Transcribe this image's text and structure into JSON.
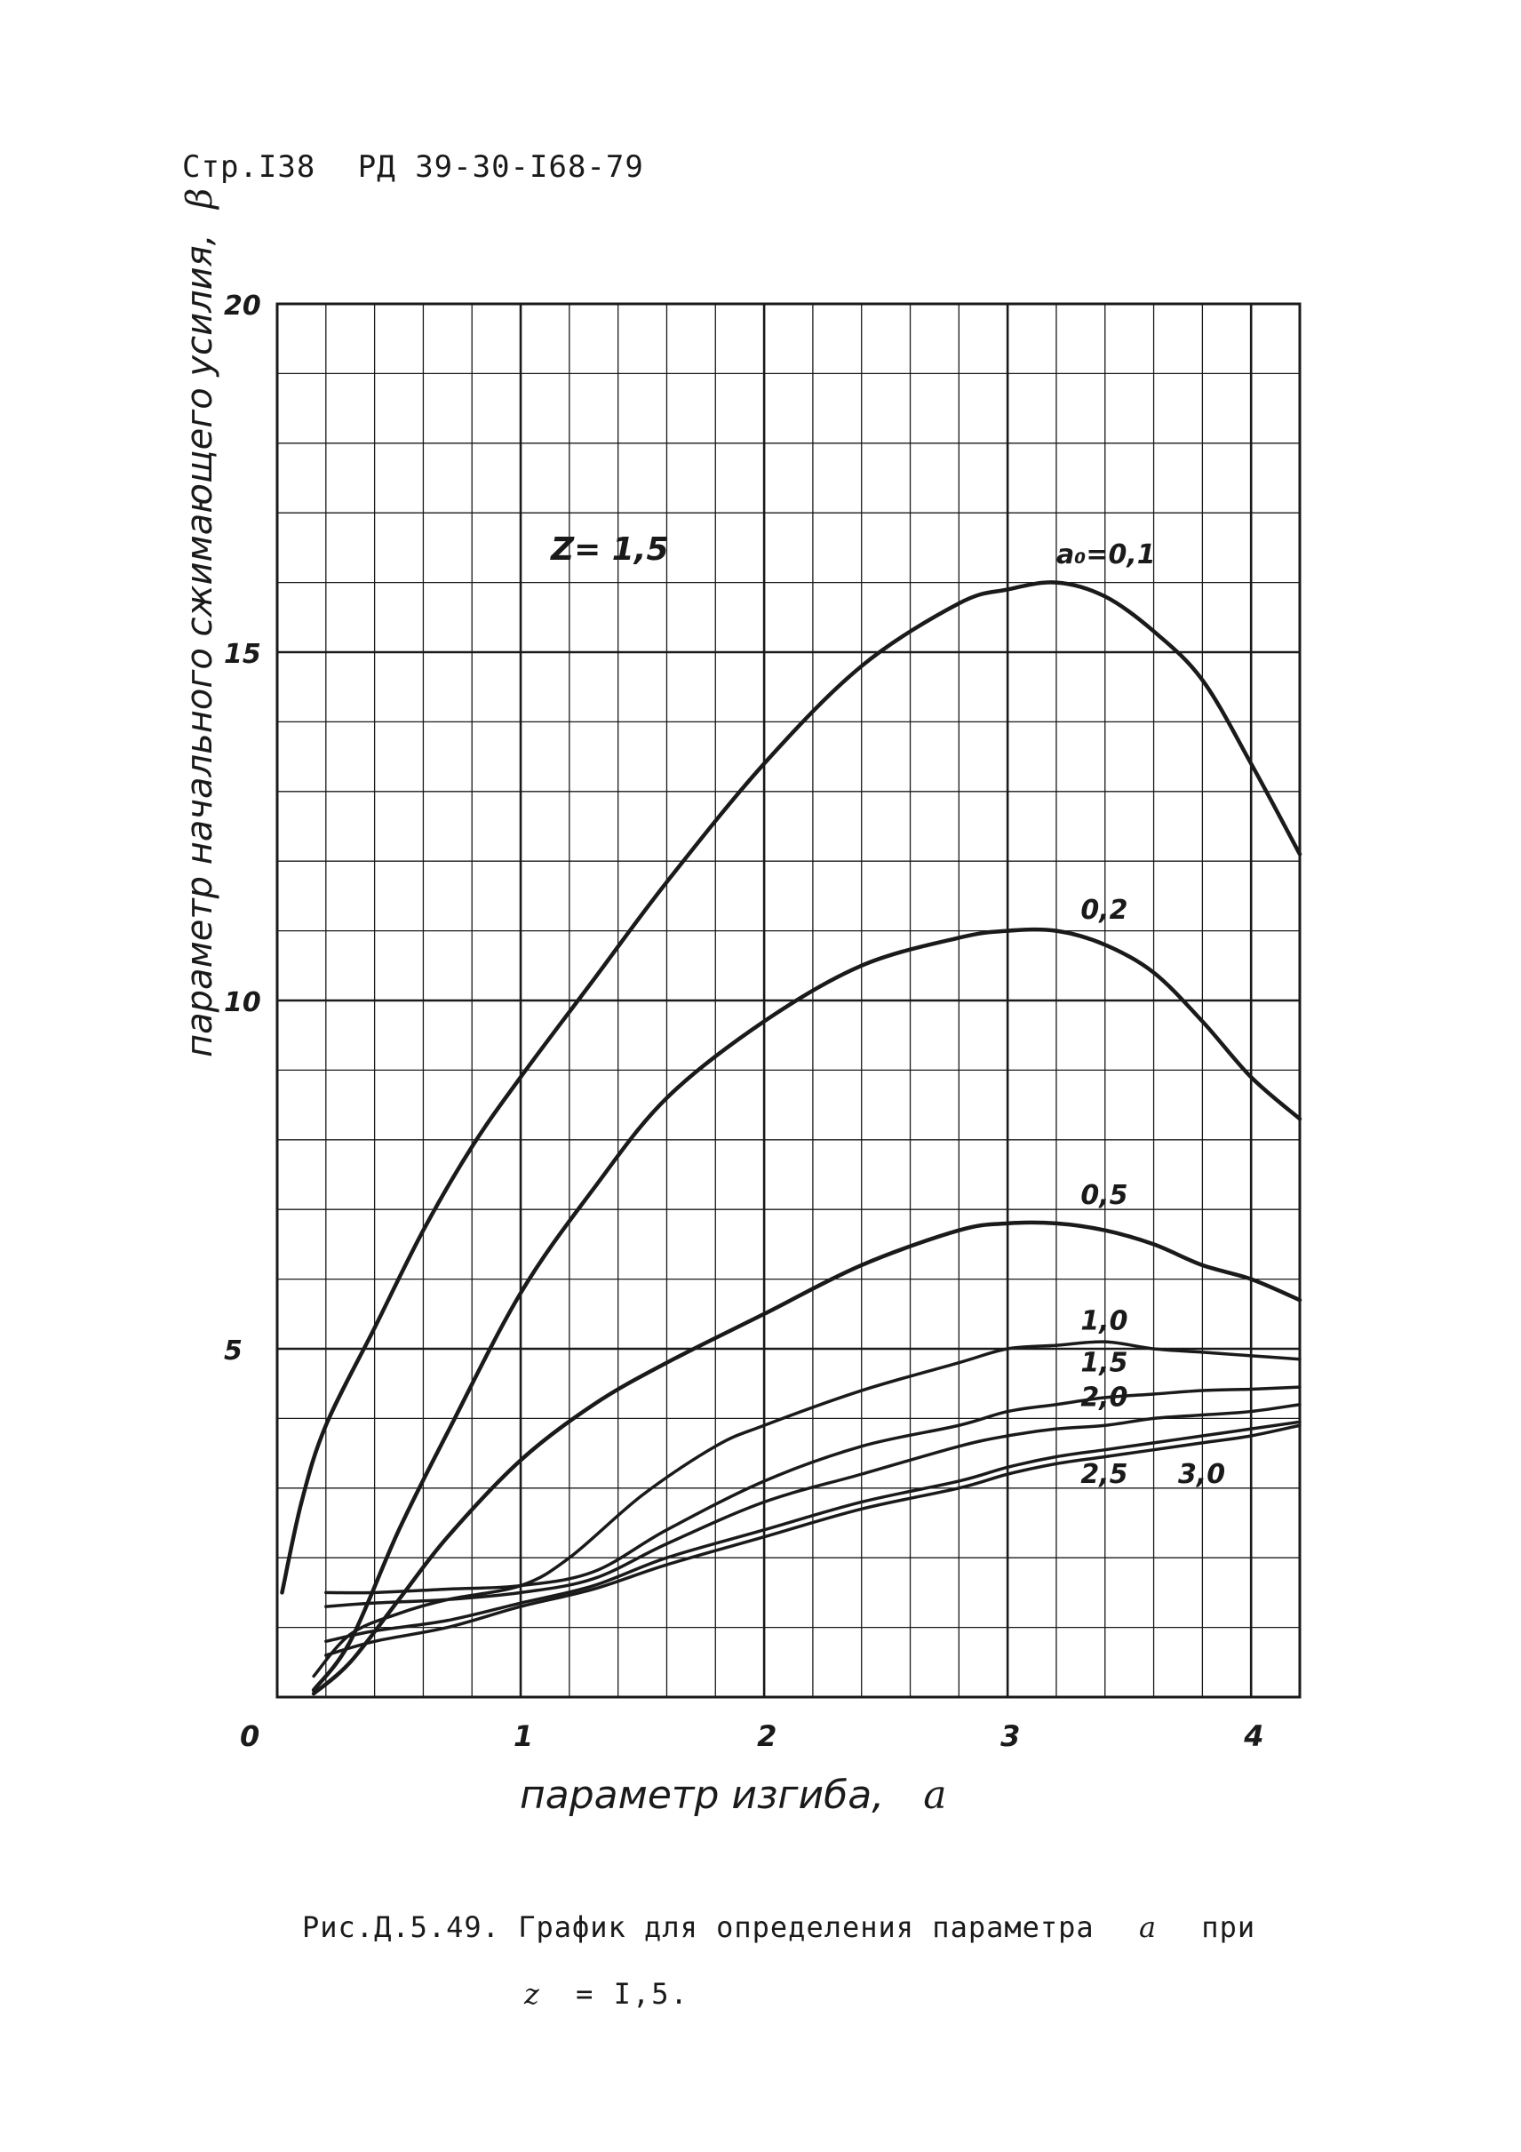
{
  "header": {
    "page": "Стр.I38",
    "doc": "РД 39-30-I68-79"
  },
  "caption": {
    "line1_prefix": "Рис.Д.5.49. График для определения параметра",
    "line1_symbol": "a",
    "line1_suffix": "при",
    "line2_symbol": "z",
    "line2_rest": "= I,5."
  },
  "colors": {
    "ink": "#1a1a1a",
    "grid": "#1a1a1a",
    "paper": "#ffffff"
  },
  "chart_data": {
    "type": "line",
    "xlabel": "параметр изгиба,",
    "xlabel_symbol": "a",
    "ylabel": "параметр начального сжимающего усилия,",
    "ylabel_symbol": "β",
    "annotation": "Z= 1,5",
    "xlim": [
      0,
      4.2
    ],
    "ylim": [
      0,
      20
    ],
    "x_ticks": [
      {
        "value": 0,
        "label": "0"
      },
      {
        "value": 1,
        "label": "1"
      },
      {
        "value": 2,
        "label": "2"
      },
      {
        "value": 3,
        "label": "3"
      },
      {
        "value": 4,
        "label": "4"
      }
    ],
    "y_ticks": [
      {
        "value": 0,
        "label": ""
      },
      {
        "value": 5,
        "label": "5"
      },
      {
        "value": 10,
        "label": "10"
      },
      {
        "value": 15,
        "label": "15"
      },
      {
        "value": 20,
        "label": "20"
      }
    ],
    "grid": true,
    "series": [
      {
        "name": "a₀=0,1",
        "label_x": 3.2,
        "label_y": 16.2,
        "x": [
          0.02,
          0.1,
          0.2,
          0.4,
          0.6,
          0.8,
          1.0,
          1.3,
          1.6,
          2.0,
          2.4,
          2.8,
          3.0,
          3.2,
          3.4,
          3.6,
          3.8,
          4.0,
          4.2
        ],
        "y": [
          1.5,
          2.8,
          3.9,
          5.3,
          6.7,
          7.9,
          8.9,
          10.3,
          11.7,
          13.4,
          14.8,
          15.7,
          15.9,
          16.0,
          15.8,
          15.3,
          14.6,
          13.4,
          12.1
        ]
      },
      {
        "name": "0,2",
        "label_x": 3.3,
        "label_y": 11.1,
        "x": [
          0.15,
          0.3,
          0.5,
          0.7,
          1.0,
          1.3,
          1.6,
          2.0,
          2.4,
          2.8,
          3.0,
          3.2,
          3.4,
          3.6,
          3.8,
          4.0,
          4.2
        ],
        "y": [
          0.1,
          0.8,
          2.4,
          3.8,
          5.8,
          7.3,
          8.6,
          9.7,
          10.5,
          10.9,
          11.0,
          11.0,
          10.8,
          10.4,
          9.7,
          8.9,
          8.3
        ]
      },
      {
        "name": "0,5",
        "label_x": 3.3,
        "label_y": 7.0,
        "x": [
          0.15,
          0.3,
          0.5,
          0.7,
          1.0,
          1.3,
          1.6,
          2.0,
          2.4,
          2.8,
          3.0,
          3.2,
          3.4,
          3.6,
          3.8,
          4.0,
          4.2
        ],
        "y": [
          0.05,
          0.5,
          1.4,
          2.3,
          3.4,
          4.2,
          4.8,
          5.5,
          6.2,
          6.7,
          6.8,
          6.8,
          6.7,
          6.5,
          6.2,
          6.0,
          5.7
        ]
      },
      {
        "name": "1,0",
        "label_x": 3.3,
        "label_y": 5.2,
        "x": [
          0.15,
          0.3,
          0.5,
          0.7,
          1.0,
          1.2,
          1.5,
          1.8,
          2.0,
          2.4,
          2.8,
          3.0,
          3.2,
          3.4,
          3.6,
          3.8,
          4.0,
          4.2
        ],
        "y": [
          0.3,
          0.9,
          1.2,
          1.4,
          1.6,
          2.0,
          2.9,
          3.6,
          3.9,
          4.4,
          4.8,
          5.0,
          5.05,
          5.1,
          5.0,
          4.95,
          4.9,
          4.85
        ]
      },
      {
        "name": "1,5",
        "label_x": 3.3,
        "label_y": 4.6,
        "x": [
          0.2,
          0.4,
          0.7,
          1.0,
          1.3,
          1.6,
          2.0,
          2.4,
          2.8,
          3.0,
          3.2,
          3.4,
          3.6,
          3.8,
          4.0,
          4.2
        ],
        "y": [
          1.5,
          1.5,
          1.55,
          1.6,
          1.8,
          2.4,
          3.1,
          3.6,
          3.9,
          4.1,
          4.2,
          4.3,
          4.35,
          4.4,
          4.42,
          4.45
        ]
      },
      {
        "name": "2,0",
        "label_x": 3.3,
        "label_y": 4.1,
        "x": [
          0.2,
          0.4,
          0.7,
          1.0,
          1.3,
          1.6,
          2.0,
          2.4,
          2.8,
          3.0,
          3.2,
          3.4,
          3.6,
          3.8,
          4.0,
          4.2
        ],
        "y": [
          1.3,
          1.35,
          1.4,
          1.5,
          1.7,
          2.2,
          2.8,
          3.2,
          3.6,
          3.75,
          3.85,
          3.9,
          4.0,
          4.05,
          4.1,
          4.2
        ]
      },
      {
        "name": "2,5",
        "label_x": 3.3,
        "label_y": 3.0,
        "x": [
          0.2,
          0.4,
          0.7,
          1.0,
          1.3,
          1.6,
          2.0,
          2.4,
          2.8,
          3.0,
          3.2,
          3.4,
          3.6,
          3.8,
          4.0,
          4.2
        ],
        "y": [
          0.8,
          0.95,
          1.1,
          1.35,
          1.6,
          2.0,
          2.4,
          2.8,
          3.1,
          3.3,
          3.45,
          3.55,
          3.65,
          3.75,
          3.85,
          3.95
        ]
      },
      {
        "name": "3,0",
        "label_x": 3.7,
        "label_y": 3.0,
        "x": [
          0.2,
          0.4,
          0.7,
          1.0,
          1.3,
          1.6,
          2.0,
          2.4,
          2.8,
          3.0,
          3.2,
          3.4,
          3.6,
          3.8,
          4.0,
          4.2
        ],
        "y": [
          0.6,
          0.8,
          1.0,
          1.3,
          1.55,
          1.9,
          2.3,
          2.7,
          3.0,
          3.2,
          3.35,
          3.45,
          3.55,
          3.65,
          3.75,
          3.9
        ]
      }
    ]
  }
}
